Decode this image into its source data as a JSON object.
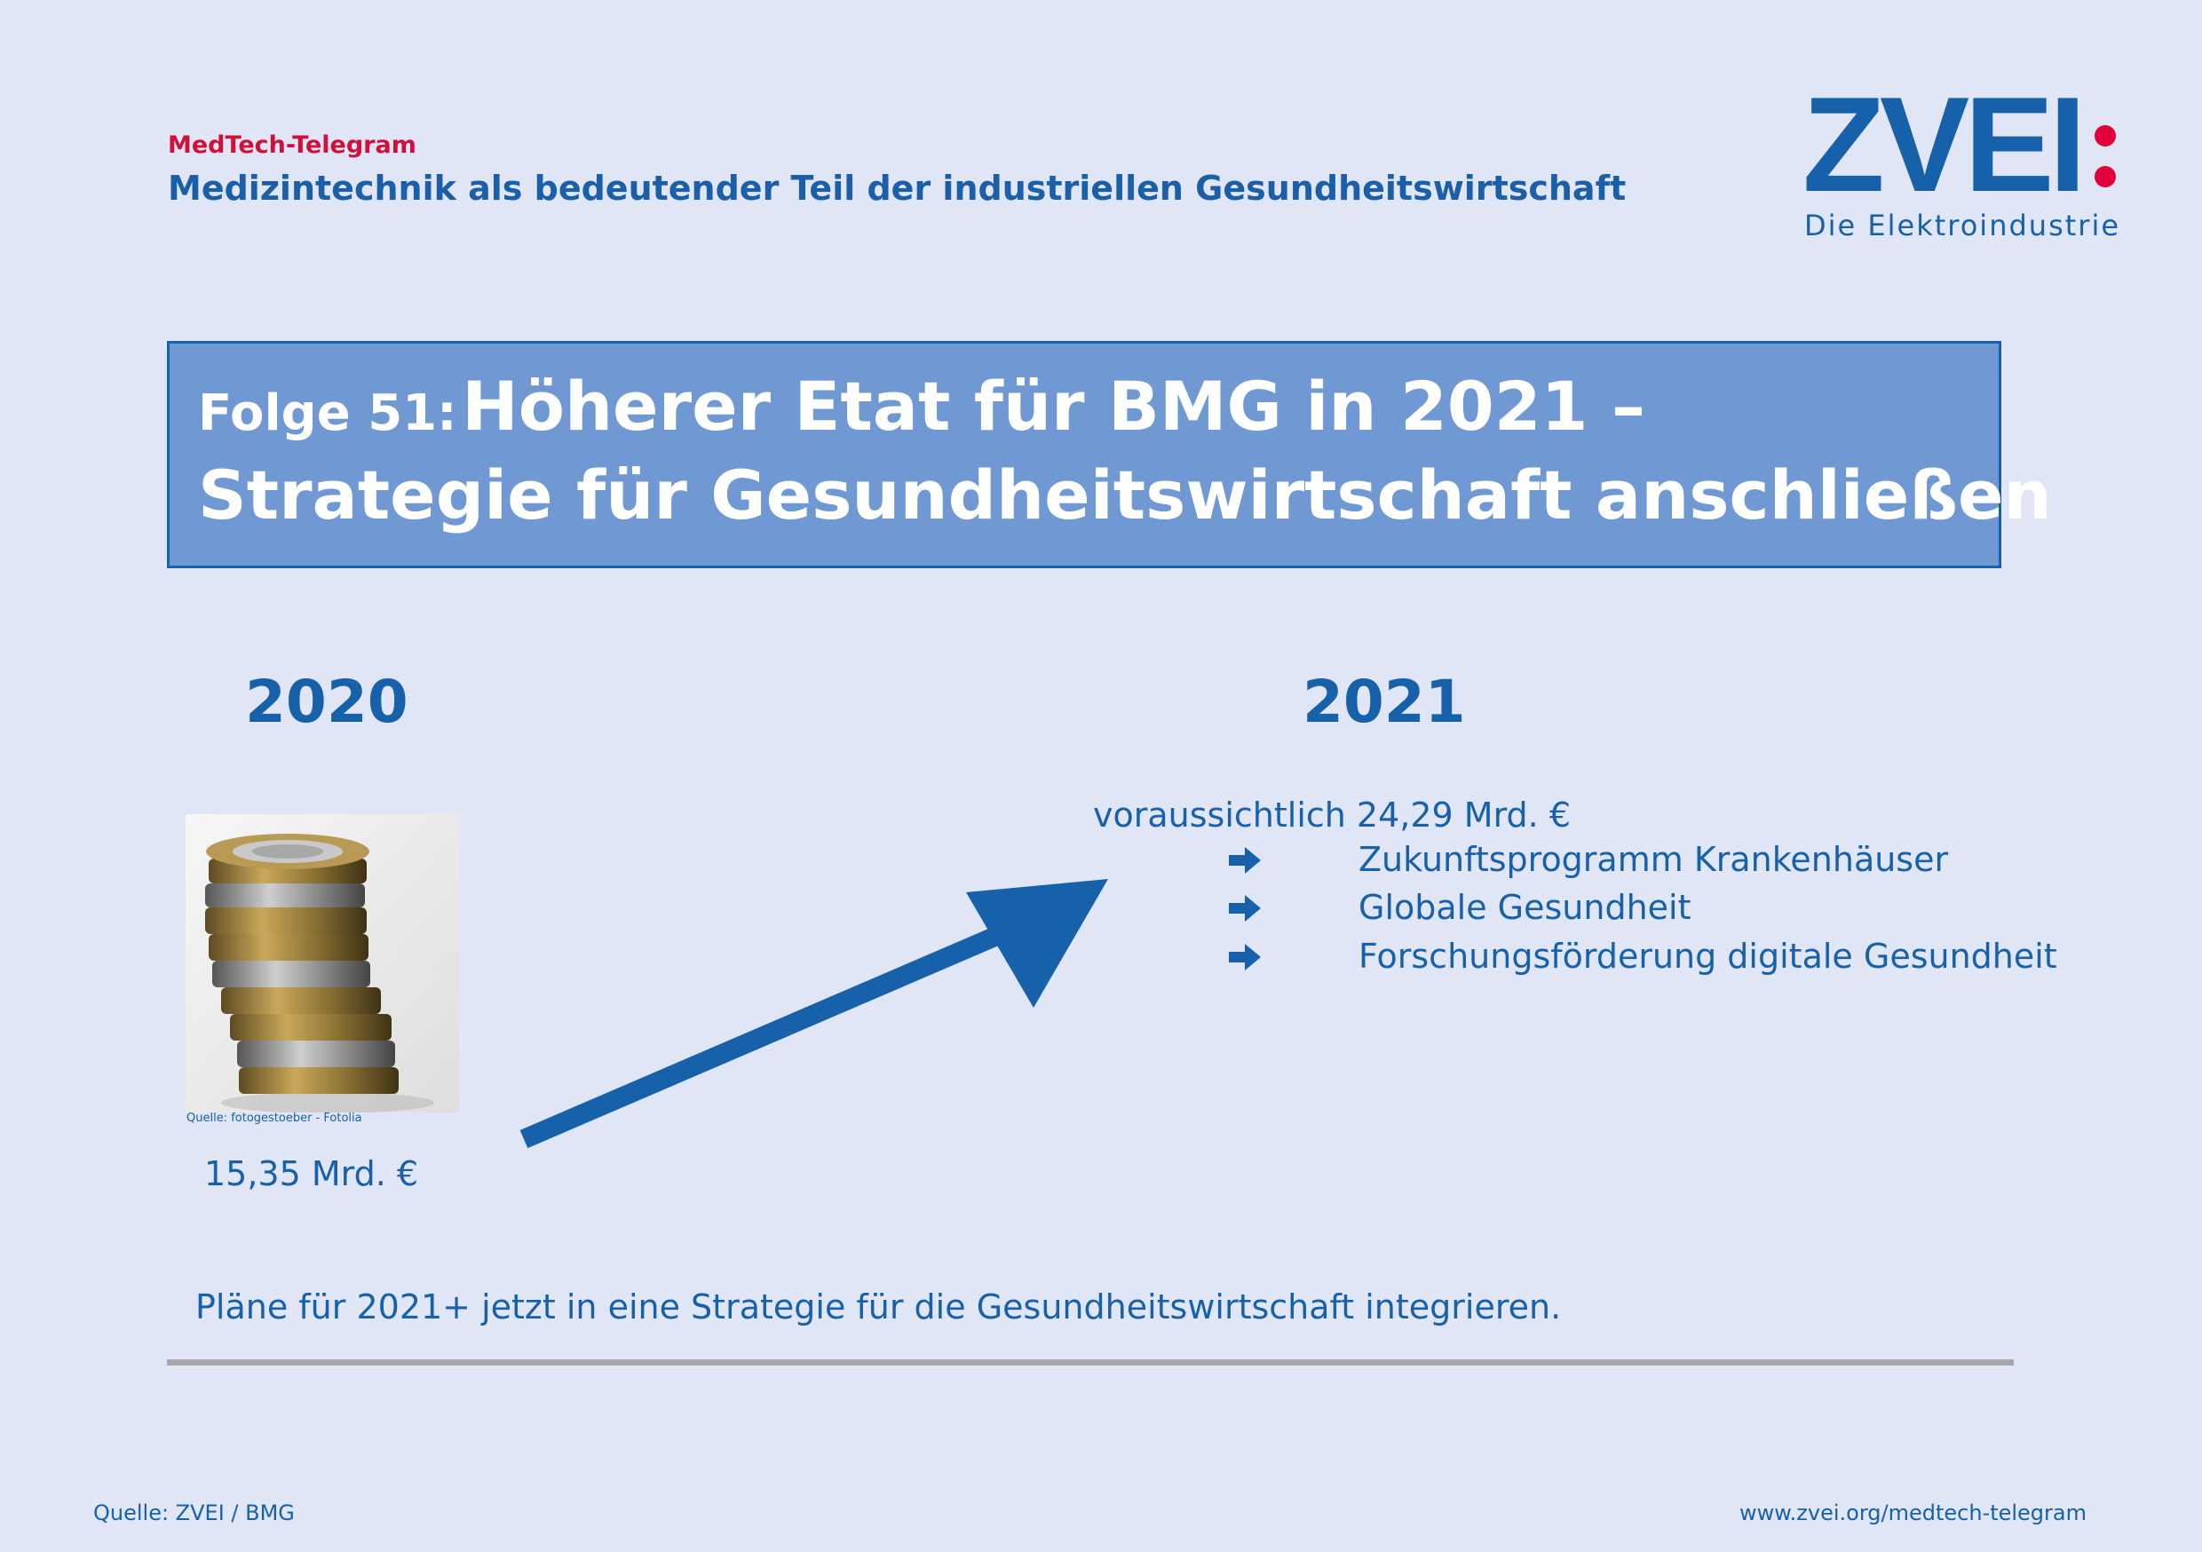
{
  "header": {
    "series_label": "MedTech-Telegram",
    "subtitle": "Medizintechnik als bedeutender Teil der industriellen Gesundheitswirtschaft"
  },
  "logo": {
    "wordmark": "ZVEI",
    "tagline": "Die Elektroindustrie",
    "dot_color": "#e2003b",
    "brand_color": "#1760aa"
  },
  "title": {
    "prefix": "Folge 51:",
    "line1": "Höherer Etat für BMG in 2021 –",
    "line2": "Strategie für Gesundheitswirtschaft anschließen"
  },
  "comparison": {
    "year_2020": "2020",
    "year_2021": "2021",
    "value_2020": "15,35 Mrd. €",
    "value_2021": "voraussichtlich 24,29 Mrd. €",
    "photo_credit": "Quelle: fotogestoeber - Fotolia",
    "bullets": [
      {
        "icon": "arrow-right-icon",
        "text": "Zukunftsprogramm Krankenhäuser"
      },
      {
        "icon": "arrow-right-icon",
        "text": "Globale Gesundheit"
      },
      {
        "icon": "arrow-right-icon",
        "text": "Forschungsförderung digitale Gesundheit"
      }
    ]
  },
  "conclusion": "Pläne für 2021+ jetzt in eine Strategie für die Gesundheitswirtschaft integrieren.",
  "footer": {
    "source": "Quelle: ZVEI / BMG",
    "website": "www.zvei.org/medtech-telegram"
  }
}
